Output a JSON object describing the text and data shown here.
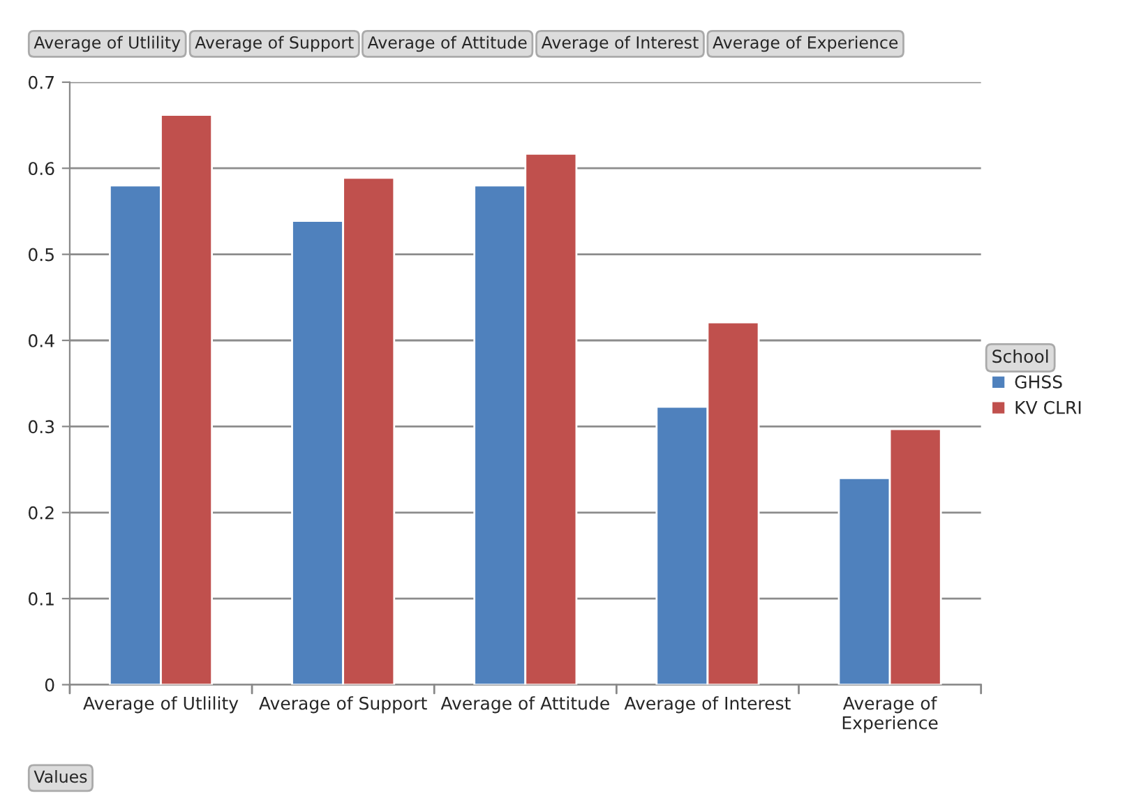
{
  "chart_data": {
    "type": "bar",
    "categories": [
      "Average of Utlility",
      "Average of Support",
      "Average of Attitude",
      "Average of Interest",
      "Average of Experience"
    ],
    "series": [
      {
        "name": "GHSS",
        "color": "#4f81bd",
        "values": [
          0.58,
          0.539,
          0.58,
          0.323,
          0.24
        ]
      },
      {
        "name": "KV CLRI",
        "color": "#c0504d",
        "values": [
          0.662,
          0.589,
          0.617,
          0.421,
          0.297
        ]
      }
    ],
    "ylim": [
      0,
      0.7
    ],
    "yticks": [
      {
        "value": 0,
        "label": "0"
      },
      0.1,
      0.2,
      0.3,
      0.4,
      0.5,
      0.6,
      0.7
    ],
    "grid": "y",
    "legend": "right",
    "legend_title": "School",
    "annotations": [
      "Average of Utlility",
      "Average of Support",
      "Average of Attitude",
      "Average of Interest",
      "Average of Experience",
      "Values"
    ]
  }
}
